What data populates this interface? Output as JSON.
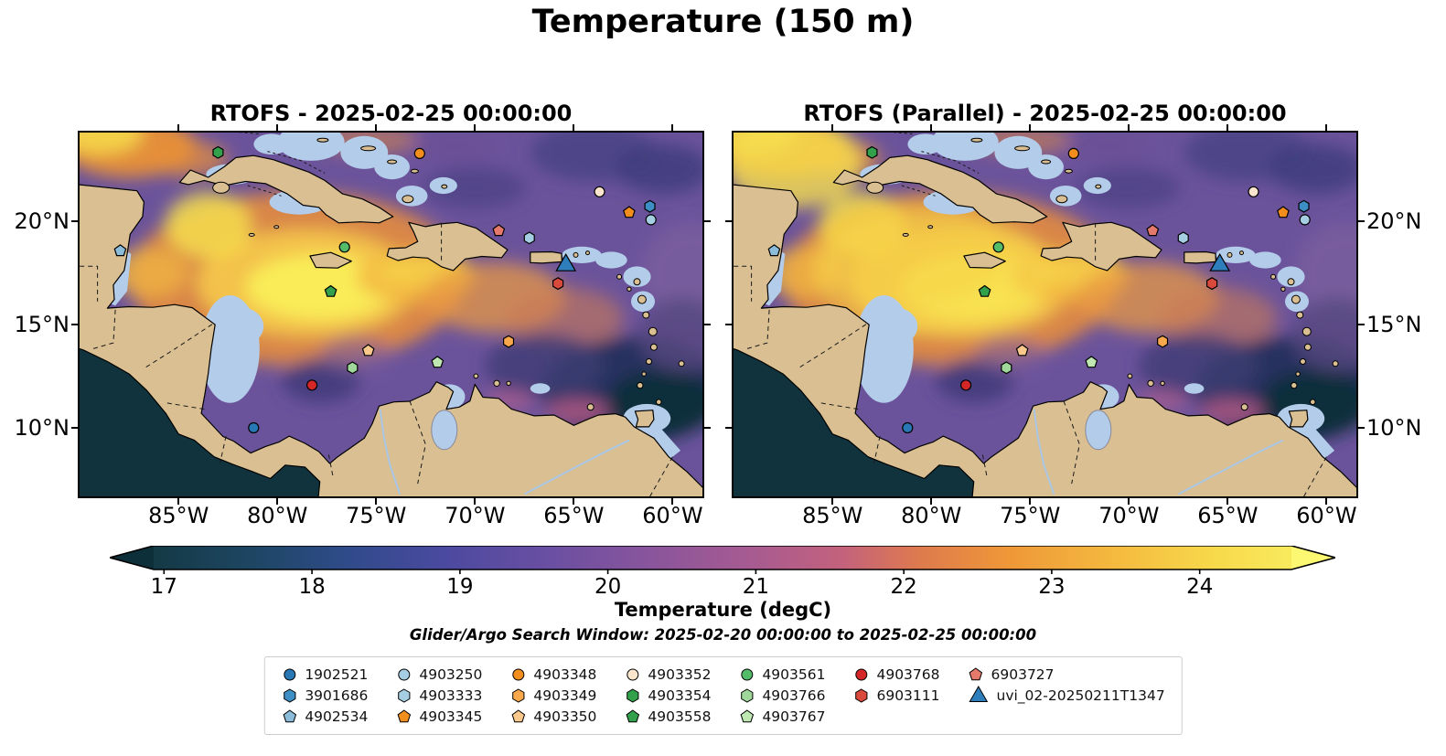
{
  "page": {
    "title": "Temperature (150 m)"
  },
  "chart_data": {
    "type": "heatmap",
    "title": "Temperature (150 m)",
    "panels": [
      {
        "title": "RTOFS - 2025-02-25 00:00:00"
      },
      {
        "title": "RTOFS (Parallel) - 2025-02-25 00:00:00"
      }
    ],
    "projection": {
      "lon_range": [
        -90.1,
        -58.4
      ],
      "lat_range": [
        6.6,
        24.35
      ]
    },
    "xticks": {
      "lons": [
        -85,
        -80,
        -75,
        -70,
        -65,
        -60
      ],
      "labels": [
        "85°W",
        "80°W",
        "75°W",
        "70°W",
        "65°W",
        "60°W"
      ]
    },
    "yticks": {
      "lats": [
        20,
        15,
        10
      ],
      "labels": [
        "20°N",
        "15°N",
        "10°N"
      ]
    },
    "colorbar": {
      "label": "Temperature (degC)",
      "tick_values": [
        17,
        18,
        19,
        20,
        21,
        22,
        23,
        24
      ],
      "vmin": 16.93,
      "vmax": 24.62,
      "under_color": "#0d2f3a",
      "over_color": "#fdf871",
      "stops": [
        {
          "v": 16.95,
          "c": "#143a46"
        },
        {
          "v": 17.6,
          "c": "#1e4663"
        },
        {
          "v": 18.2,
          "c": "#2e4b88"
        },
        {
          "v": 18.9,
          "c": "#4b4aa0"
        },
        {
          "v": 19.6,
          "c": "#6a4fa2"
        },
        {
          "v": 20.3,
          "c": "#8a559c"
        },
        {
          "v": 21.0,
          "c": "#a85b90"
        },
        {
          "v": 21.6,
          "c": "#c4627c"
        },
        {
          "v": 22.1,
          "c": "#de7a4e"
        },
        {
          "v": 22.7,
          "c": "#ee9738"
        },
        {
          "v": 23.4,
          "c": "#f4b83e"
        },
        {
          "v": 24.1,
          "c": "#f7d94b"
        },
        {
          "v": 24.62,
          "c": "#f9ea5d"
        }
      ]
    },
    "annotation": "Glider/Argo Search Window: 2025-02-20 00:00:00 to 2025-02-25 00:00:00",
    "markers": [
      {
        "id": "1902521",
        "shape": "circle",
        "color": "#2878b5",
        "lon": -81.2,
        "lat": 10.0
      },
      {
        "id": "3901686",
        "shape": "hexagon",
        "color": "#3d8ec4",
        "lon": -61.15,
        "lat": 20.7
      },
      {
        "id": "4902534",
        "shape": "pentagon",
        "color": "#8bbdda",
        "lon": -87.95,
        "lat": 18.55
      },
      {
        "id": "4903250",
        "shape": "circle",
        "color": "#a6cee3",
        "lon": -61.1,
        "lat": 20.05
      },
      {
        "id": "4903333",
        "shape": "hexagon",
        "color": "#a6cee3",
        "lon": -67.25,
        "lat": 19.17
      },
      {
        "id": "4903345",
        "shape": "pentagon",
        "color": "#f28e1e",
        "lon": -62.2,
        "lat": 20.4
      },
      {
        "id": "4903348",
        "shape": "circle",
        "color": "#f28e1e",
        "lon": -72.8,
        "lat": 23.25
      },
      {
        "id": "4903349",
        "shape": "hexagon",
        "color": "#f9a94b",
        "lon": -68.3,
        "lat": 14.17
      },
      {
        "id": "4903350",
        "shape": "pentagon",
        "color": "#fcc98d",
        "lon": -75.4,
        "lat": 13.73
      },
      {
        "id": "4903352",
        "shape": "circle",
        "color": "#fbe5cd",
        "lon": -63.7,
        "lat": 21.4
      },
      {
        "id": "4903354",
        "shape": "hexagon",
        "color": "#33a14b",
        "lon": -83.0,
        "lat": 23.3
      },
      {
        "id": "4903558",
        "shape": "pentagon",
        "color": "#33a14b",
        "lon": -77.3,
        "lat": 16.58
      },
      {
        "id": "4903561",
        "shape": "circle",
        "color": "#52bc69",
        "lon": -76.6,
        "lat": 18.73
      },
      {
        "id": "4903766",
        "shape": "hexagon",
        "color": "#9fd89a",
        "lon": -76.2,
        "lat": 12.9
      },
      {
        "id": "4903767",
        "shape": "pentagon",
        "color": "#bfe8b2",
        "lon": -71.9,
        "lat": 13.16
      },
      {
        "id": "4903768",
        "shape": "circle",
        "color": "#d62728",
        "lon": -78.25,
        "lat": 12.06
      },
      {
        "id": "6903111",
        "shape": "hexagon",
        "color": "#da4a3c",
        "lon": -65.8,
        "lat": 16.97
      },
      {
        "id": "6903727",
        "shape": "pentagon",
        "color": "#e5796b",
        "lon": -68.8,
        "lat": 19.52
      },
      {
        "id": "uvi_02-20250211T1347",
        "shape": "triangle",
        "color": "#2e7ebc",
        "lon": -65.4,
        "lat": 17.85
      }
    ]
  }
}
